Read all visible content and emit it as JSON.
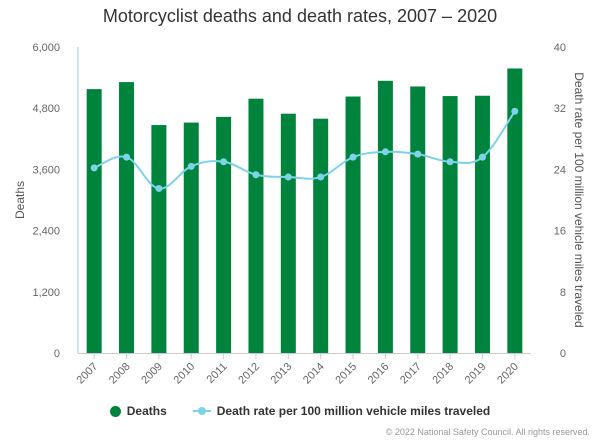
{
  "chart_data": {
    "type": "bar",
    "title": "Motorcyclist deaths and death rates, 2007 – 2020",
    "categories": [
      "2007",
      "2008",
      "2009",
      "2010",
      "2011",
      "2012",
      "2013",
      "2014",
      "2015",
      "2016",
      "2017",
      "2018",
      "2019",
      "2020"
    ],
    "series": [
      {
        "name": "Deaths",
        "type": "bar",
        "axis": "left",
        "color": "#00843d",
        "values": [
          5174,
          5312,
          4469,
          4518,
          4630,
          4986,
          4692,
          4594,
          5029,
          5337,
          5226,
          5038,
          5044,
          5579
        ]
      },
      {
        "name": "Death rate per 100 million vehicle miles traveled",
        "type": "line",
        "axis": "right",
        "color": "#7dd3e8",
        "values": [
          24.2,
          25.6,
          21.5,
          24.4,
          25.0,
          23.3,
          23.0,
          23.0,
          25.6,
          26.3,
          26.0,
          25.0,
          25.6,
          31.6
        ]
      }
    ],
    "ylabel": "Deaths",
    "ylim": [
      0,
      6000
    ],
    "yticks": [
      "0",
      "1,200",
      "2,400",
      "3,600",
      "4,800",
      "6,000"
    ],
    "y2label": "Death rate per 100 million vehicle miles traveled",
    "y2lim": [
      0,
      40
    ],
    "y2ticks": [
      "0",
      "8",
      "16",
      "24",
      "32",
      "40"
    ],
    "grid": false,
    "legend_position": "bottom-center"
  },
  "credit": "© 2022 National Safety Council. All rights reserved."
}
